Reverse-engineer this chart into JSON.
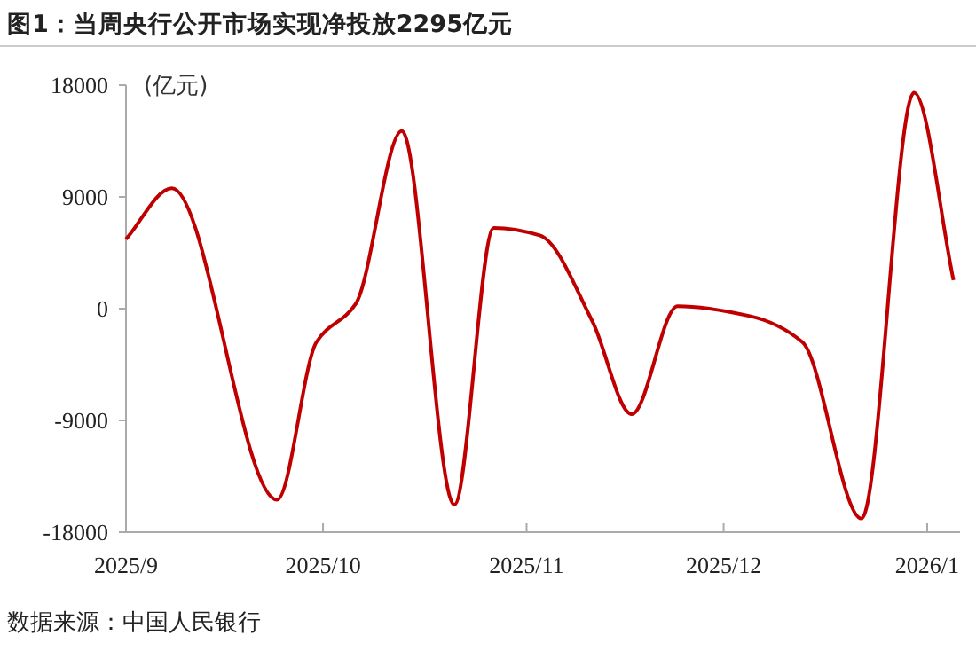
{
  "chart_data": {
    "type": "line",
    "title": "图1：当周央行公开市场实现净投放2295亿元",
    "ylabel": "(亿元)",
    "annotations": [
      "数据来源：中国人民银行"
    ],
    "x": [
      "2025-09-01",
      "2025-09-08",
      "2025-09-24",
      "2025-09-30",
      "2025-10-06",
      "2025-10-13",
      "2025-10-21",
      "2025-10-27",
      "2025-11-03",
      "2025-11-11",
      "2025-11-17",
      "2025-11-24",
      "2025-12-05",
      "2025-12-13",
      "2025-12-22",
      "2025-12-30",
      "2026-01-05"
    ],
    "series": [
      {
        "color": "#c00000",
        "values": [
          5600,
          9700,
          -15400,
          -2700,
          400,
          14300,
          -15800,
          6500,
          5900,
          -1000,
          -8500,
          200,
          -600,
          -2700,
          -16900,
          17400,
          2295
        ]
      }
    ],
    "xlim": [
      "2025-09-01",
      "2026-01-06"
    ],
    "xticks": [
      {
        "value": "2025-09-01",
        "label": "2025/9"
      },
      {
        "value": "2025-10-01",
        "label": "2025/10"
      },
      {
        "value": "2025-11-01",
        "label": "2025/11"
      },
      {
        "value": "2025-12-01",
        "label": "2025/12"
      },
      {
        "value": "2026-01-01",
        "label": "2026/1"
      }
    ],
    "ylim": [
      -18000,
      18000
    ],
    "yticks": [
      -18000,
      -9000,
      0,
      9000,
      18000
    ],
    "grid": false,
    "marker": "none",
    "line_style": "solid"
  }
}
